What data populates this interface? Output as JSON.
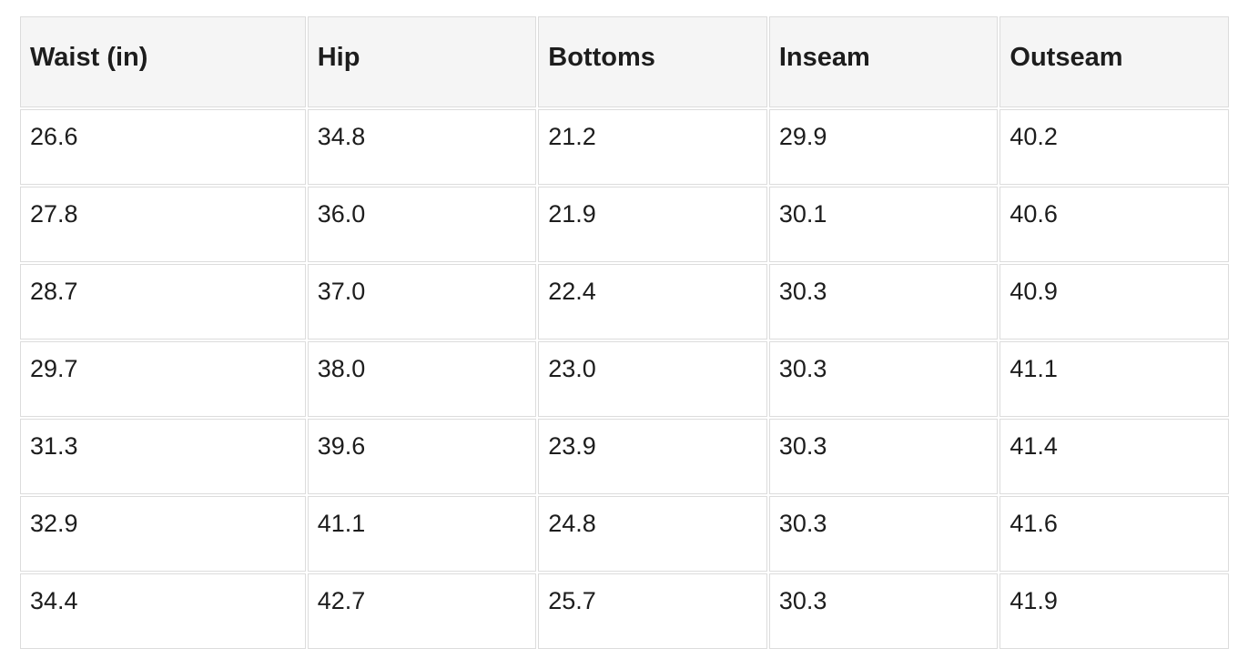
{
  "chart_data": {
    "type": "table",
    "title": "",
    "columns": [
      "Waist (in)",
      "Hip",
      "Bottoms",
      "Inseam",
      "Outseam"
    ],
    "rows": [
      [
        "26.6",
        "34.8",
        "21.2",
        "29.9",
        "40.2"
      ],
      [
        "27.8",
        "36.0",
        "21.9",
        "30.1",
        "40.6"
      ],
      [
        "28.7",
        "37.0",
        "22.4",
        "30.3",
        "40.9"
      ],
      [
        "29.7",
        "38.0",
        "23.0",
        "30.3",
        "41.1"
      ],
      [
        "31.3",
        "39.6",
        "23.9",
        "30.3",
        "41.4"
      ],
      [
        "32.9",
        "41.1",
        "24.8",
        "30.3",
        "41.6"
      ],
      [
        "34.4",
        "42.7",
        "25.7",
        "30.3",
        "41.9"
      ]
    ],
    "colors": {
      "header_bg": "#f5f5f5",
      "border": "#dcdcdc",
      "text": "#1d1d1d",
      "page_bg": "#ffffff"
    }
  }
}
